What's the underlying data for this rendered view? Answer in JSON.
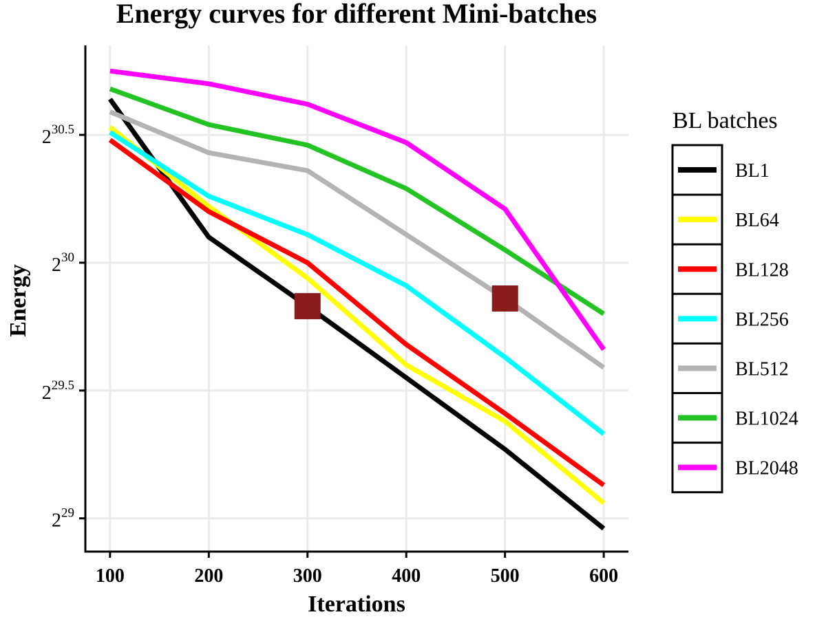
{
  "chart_data": {
    "type": "line",
    "title": "Energy curves for different Mini-batches",
    "xlabel": "Iterations",
    "ylabel": "Energy",
    "x": [
      100,
      200,
      300,
      400,
      500,
      600
    ],
    "xlim": [
      75,
      625
    ],
    "ylim": [
      28.87,
      30.85
    ],
    "y_scale": "log2",
    "x_ticks": [
      100,
      200,
      300,
      400,
      500,
      600
    ],
    "x_tick_labels": [
      "100",
      "200",
      "300",
      "400",
      "500",
      "600"
    ],
    "y_ticks": [
      {
        "value": 29,
        "base": "2",
        "exp": "29"
      },
      {
        "value": 29.5,
        "base": "2",
        "exp": "29.5"
      },
      {
        "value": 30,
        "base": "2",
        "exp": "30"
      },
      {
        "value": 30.5,
        "base": "2",
        "exp": "30.5"
      }
    ],
    "grid": true,
    "legend_title": "BL batches",
    "legend_position": "right",
    "series": [
      {
        "name": "BL1",
        "color": "#000000",
        "log2_values": [
          30.64,
          30.1,
          29.83,
          29.55,
          29.27,
          28.96
        ]
      },
      {
        "name": "BL64",
        "color": "#ffff00",
        "log2_values": [
          30.53,
          30.22,
          29.94,
          29.6,
          29.38,
          29.06
        ]
      },
      {
        "name": "BL128",
        "color": "#ff0000",
        "log2_values": [
          30.48,
          30.2,
          30.0,
          29.68,
          29.41,
          29.13
        ]
      },
      {
        "name": "BL256",
        "color": "#00ffff",
        "log2_values": [
          30.51,
          30.26,
          30.11,
          29.91,
          29.63,
          29.33
        ]
      },
      {
        "name": "BL512",
        "color": "#b3b3b3",
        "log2_values": [
          30.59,
          30.43,
          30.36,
          30.11,
          29.86,
          29.59
        ]
      },
      {
        "name": "BL1024",
        "color": "#22c322",
        "log2_values": [
          30.68,
          30.54,
          30.46,
          30.29,
          30.05,
          29.8
        ]
      },
      {
        "name": "BL2048",
        "color": "#ff00ff",
        "log2_values": [
          30.75,
          30.7,
          30.62,
          30.47,
          30.21,
          29.66
        ]
      }
    ],
    "markers": [
      {
        "x": 300,
        "log2_value": 29.83,
        "color": "#8b1a1a"
      },
      {
        "x": 500,
        "log2_value": 29.86,
        "color": "#8b1a1a"
      }
    ]
  }
}
